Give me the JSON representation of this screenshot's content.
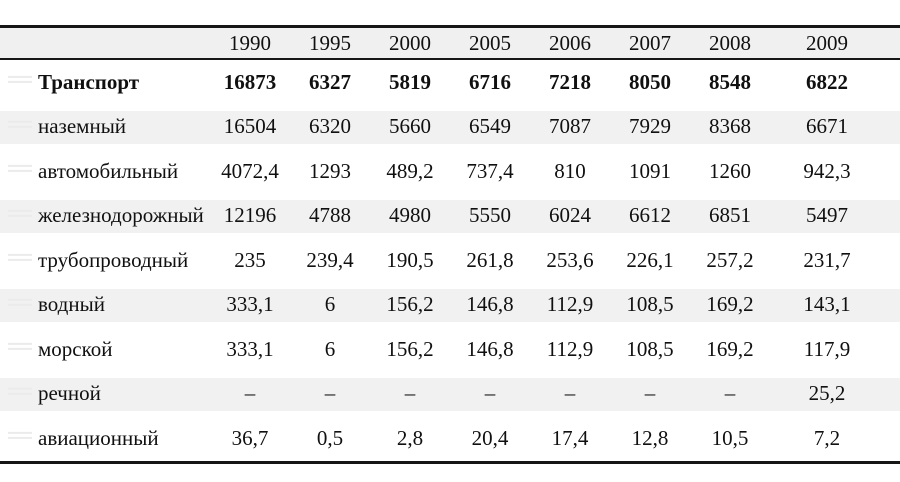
{
  "table": {
    "name": "transport-statistics-table",
    "columns": [
      "1990",
      "1995",
      "2000",
      "2005",
      "2006",
      "2007",
      "2008",
      "2009"
    ],
    "rows": [
      {
        "label": "Транспорт",
        "bold": true,
        "values": [
          "16873",
          "6327",
          "5819",
          "6716",
          "7218",
          "8050",
          "8548",
          "6822"
        ]
      },
      {
        "label": "наземный",
        "bold": false,
        "values": [
          "16504",
          "6320",
          "5660",
          "6549",
          "7087",
          "7929",
          "8368",
          "6671"
        ]
      },
      {
        "label": "автомобильный",
        "bold": false,
        "values": [
          "4072,4",
          "1293",
          "489,2",
          "737,4",
          "810",
          "1091",
          "1260",
          "942,3"
        ]
      },
      {
        "label": "железнодорожный",
        "bold": false,
        "values": [
          "12196",
          "4788",
          "4980",
          "5550",
          "6024",
          "6612",
          "6851",
          "5497"
        ]
      },
      {
        "label": "трубопроводный",
        "bold": false,
        "values": [
          "235",
          "239,4",
          "190,5",
          "261,8",
          "253,6",
          "226,1",
          "257,2",
          "231,7"
        ]
      },
      {
        "label": "водный",
        "bold": false,
        "values": [
          "333,1",
          "6",
          "156,2",
          "146,8",
          "112,9",
          "108,5",
          "169,2",
          "143,1"
        ]
      },
      {
        "label": "морской",
        "bold": false,
        "values": [
          "333,1",
          "6",
          "156,2",
          "146,8",
          "112,9",
          "108,5",
          "169,2",
          "117,9"
        ]
      },
      {
        "label": "речной",
        "bold": false,
        "values": [
          "–",
          "–",
          "–",
          "–",
          "–",
          "–",
          "–",
          "25,2"
        ]
      },
      {
        "label": "авиационный",
        "bold": false,
        "values": [
          "36,7",
          "0,5",
          "2,8",
          "20,4",
          "17,4",
          "12,8",
          "10,5",
          "7,2"
        ]
      }
    ],
    "colors": {
      "header_bg": "#f0f0f0",
      "stripe_bg": "#f1f1f1",
      "border": "#161616",
      "text": "#101010"
    }
  }
}
